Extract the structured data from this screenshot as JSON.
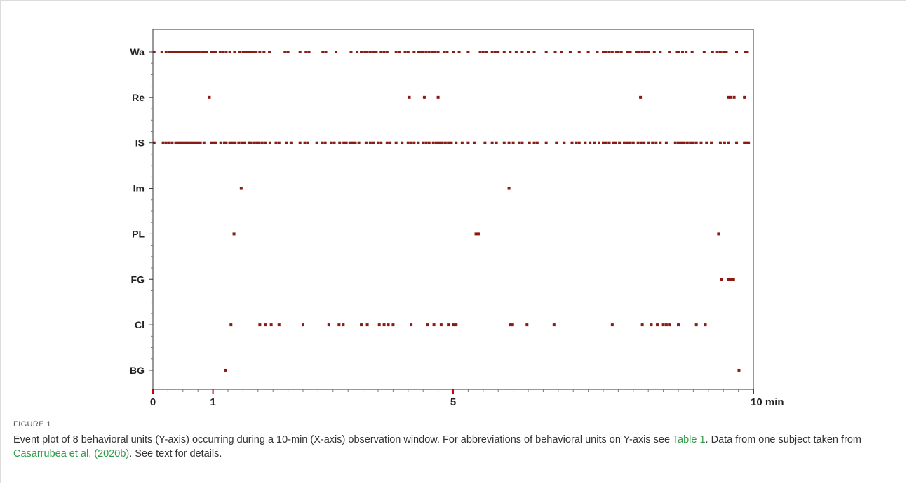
{
  "figure": {
    "label": "FIGURE 1",
    "caption_parts": [
      {
        "text": "Event plot of 8 behavioral units (Y-axis) occurring during a 10-min (X-axis) observation window. For abbreviations of behavioral units on Y-axis see ",
        "link": false
      },
      {
        "text": "Table 1",
        "link": true
      },
      {
        "text": ". Data from one subject taken from ",
        "link": false
      },
      {
        "text": "Casarrubea et al. (2020b)",
        "link": true
      },
      {
        "text": ". See text for details.",
        "link": false
      }
    ]
  },
  "colors": {
    "marker": "#8b1a14",
    "axis": "#333333",
    "tick_major": "#cc0000",
    "link": "#2e9b46"
  },
  "chart_data": {
    "type": "scatter",
    "x_unit": "min",
    "xlim": [
      0,
      10
    ],
    "x_ticks": [
      {
        "value": 0,
        "label": "0"
      },
      {
        "value": 1,
        "label": "1"
      },
      {
        "value": 5,
        "label": "5"
      },
      {
        "value": 10,
        "label": "10 min"
      }
    ],
    "x_minor_step": 0.25,
    "grid": false,
    "categories": [
      "Wa",
      "Re",
      "IS",
      "Im",
      "PL",
      "FG",
      "Cl",
      "BG"
    ],
    "series": [
      {
        "category": "Wa",
        "x": [
          0.02,
          0.15,
          0.22,
          0.27,
          0.3,
          0.34,
          0.38,
          0.42,
          0.46,
          0.5,
          0.54,
          0.58,
          0.62,
          0.66,
          0.7,
          0.73,
          0.77,
          0.82,
          0.86,
          0.9,
          0.97,
          1.02,
          1.05,
          1.12,
          1.17,
          1.22,
          1.28,
          1.36,
          1.44,
          1.5,
          1.53,
          1.57,
          1.6,
          1.63,
          1.67,
          1.72,
          1.78,
          1.85,
          1.94,
          2.2,
          2.25,
          2.45,
          2.55,
          2.6,
          2.83,
          2.88,
          3.05,
          3.3,
          3.4,
          3.47,
          3.53,
          3.57,
          3.62,
          3.67,
          3.72,
          3.8,
          3.85,
          3.9,
          4.05,
          4.1,
          4.2,
          4.25,
          4.35,
          4.42,
          4.46,
          4.5,
          4.55,
          4.6,
          4.65,
          4.7,
          4.75,
          4.85,
          4.9,
          5.0,
          5.1,
          5.25,
          5.45,
          5.5,
          5.55,
          5.65,
          5.7,
          5.75,
          5.85,
          5.95,
          6.05,
          6.15,
          6.25,
          6.35,
          6.55,
          6.7,
          6.8,
          6.95,
          7.1,
          7.25,
          7.4,
          7.5,
          7.55,
          7.6,
          7.65,
          7.72,
          7.75,
          7.8,
          7.9,
          7.95,
          8.05,
          8.1,
          8.15,
          8.2,
          8.25,
          8.35,
          8.45,
          8.6,
          8.72,
          8.76,
          8.82,
          8.88,
          8.98,
          9.18,
          9.32,
          9.4,
          9.45,
          9.5,
          9.55,
          9.72,
          9.87,
          9.9
        ]
      },
      {
        "category": "Re",
        "x": [
          0.94,
          4.27,
          4.52,
          4.75,
          8.12,
          9.58,
          9.62,
          9.68,
          9.85
        ]
      },
      {
        "category": "IS",
        "x": [
          0.02,
          0.17,
          0.22,
          0.27,
          0.32,
          0.38,
          0.42,
          0.46,
          0.5,
          0.54,
          0.58,
          0.62,
          0.66,
          0.7,
          0.74,
          0.79,
          0.85,
          0.97,
          1.02,
          1.05,
          1.13,
          1.19,
          1.22,
          1.28,
          1.32,
          1.37,
          1.43,
          1.48,
          1.52,
          1.6,
          1.6,
          1.63,
          1.68,
          1.73,
          1.77,
          1.82,
          1.87,
          1.95,
          2.05,
          2.1,
          2.23,
          2.3,
          2.45,
          2.53,
          2.58,
          2.73,
          2.82,
          2.87,
          2.97,
          3.02,
          3.11,
          3.18,
          3.22,
          3.28,
          3.32,
          3.37,
          3.43,
          3.55,
          3.62,
          3.68,
          3.75,
          3.8,
          3.9,
          3.95,
          4.05,
          4.15,
          4.25,
          4.3,
          4.35,
          4.42,
          4.5,
          4.55,
          4.6,
          4.67,
          4.72,
          4.77,
          4.82,
          4.87,
          4.92,
          4.97,
          5.05,
          5.15,
          5.25,
          5.35,
          5.53,
          5.65,
          5.72,
          5.85,
          5.93,
          6.0,
          6.1,
          6.15,
          6.27,
          6.35,
          6.4,
          6.55,
          6.72,
          6.85,
          6.98,
          7.05,
          7.1,
          7.2,
          7.28,
          7.35,
          7.43,
          7.5,
          7.55,
          7.6,
          7.67,
          7.7,
          7.77,
          7.85,
          7.9,
          7.95,
          8.0,
          8.08,
          8.13,
          8.18,
          8.26,
          8.32,
          8.38,
          8.45,
          8.55,
          8.7,
          8.75,
          8.8,
          8.85,
          8.9,
          8.95,
          9.0,
          9.05,
          9.13,
          9.22,
          9.3,
          9.45,
          9.52,
          9.58,
          9.72,
          9.85,
          9.88,
          9.92
        ]
      },
      {
        "category": "Im",
        "x": [
          1.47,
          5.93
        ]
      },
      {
        "category": "PL",
        "x": [
          1.35,
          5.38,
          5.42,
          9.42
        ]
      },
      {
        "category": "FG",
        "x": [
          9.47,
          9.58,
          9.62,
          9.67
        ]
      },
      {
        "category": "Cl",
        "x": [
          1.3,
          1.78,
          1.87,
          1.97,
          2.1,
          2.5,
          2.93,
          3.1,
          3.17,
          3.47,
          3.57,
          3.77,
          3.85,
          3.92,
          4.0,
          4.3,
          4.57,
          4.68,
          4.8,
          4.92,
          5.0,
          5.05,
          5.95,
          5.99,
          6.23,
          6.68,
          7.65,
          8.15,
          8.3,
          8.4,
          8.5,
          8.55,
          8.6,
          8.75,
          9.05,
          9.2
        ]
      },
      {
        "category": "BG",
        "x": [
          1.21,
          9.76
        ]
      }
    ]
  }
}
